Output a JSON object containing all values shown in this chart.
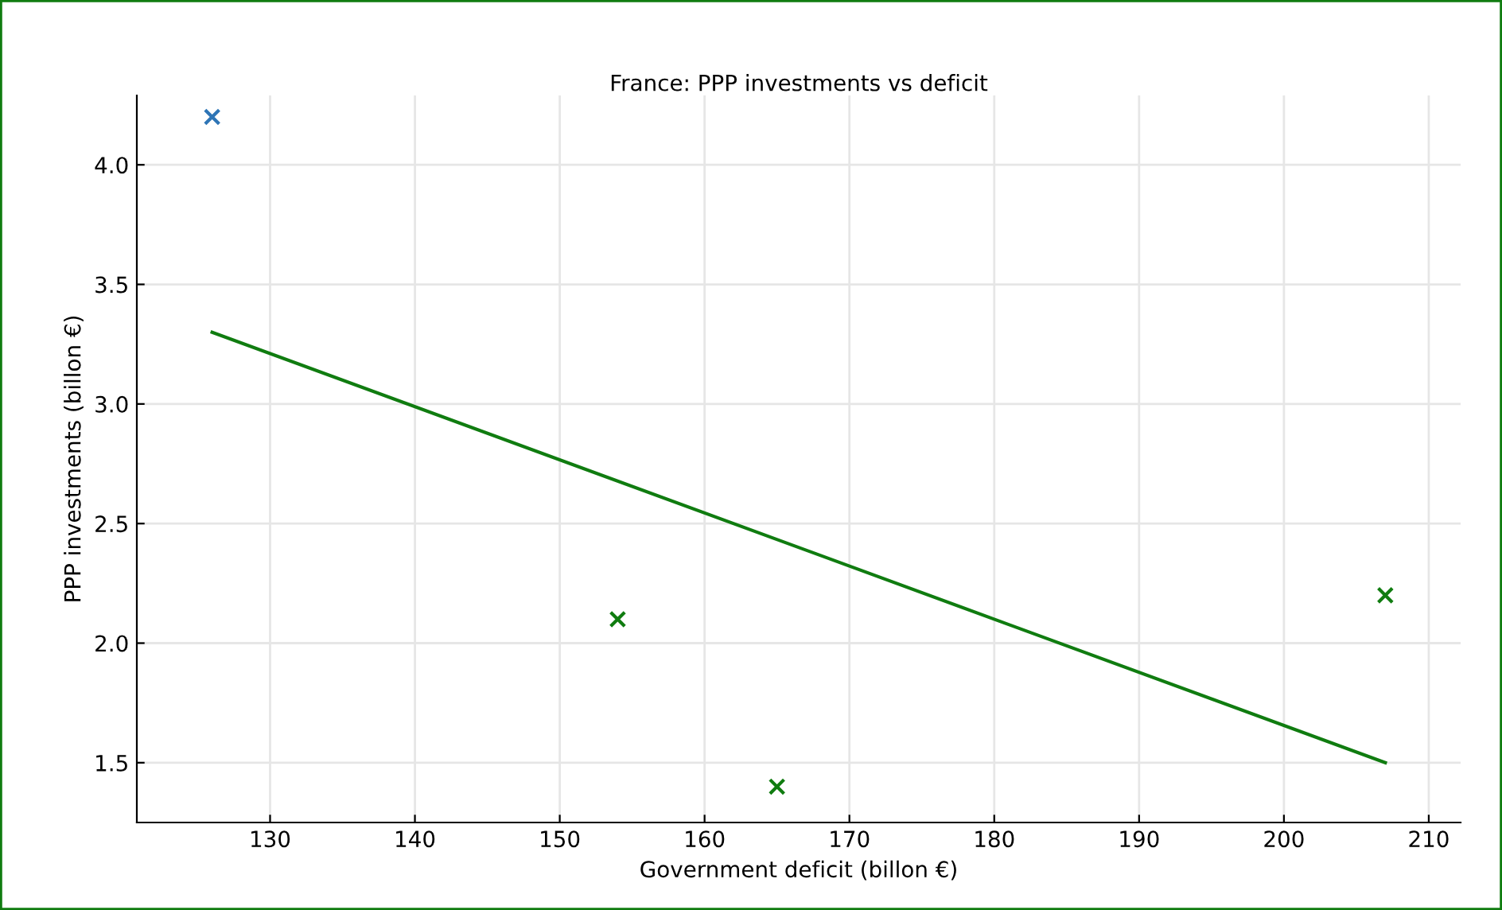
{
  "chart_data": {
    "type": "scatter",
    "title": "France: PPP investments vs deficit",
    "xlabel": "Government deficit (billon €)",
    "ylabel": "PPP investments (billon €)",
    "series": [
      {
        "color": "#2e75b6",
        "marker": "cross",
        "x": [
          126
        ],
        "values": [
          4.2
        ]
      },
      {
        "color": "#107c10",
        "marker": "cross",
        "x": [
          154,
          165,
          207
        ],
        "values": [
          2.1,
          1.4,
          2.2
        ]
      },
      {
        "type": "line",
        "color": "#107c10",
        "x": [
          126,
          207
        ],
        "values": [
          3.3,
          1.5
        ]
      }
    ],
    "grid": true,
    "xlim": [
      120.8,
      212.2
    ],
    "ylim": [
      1.25,
      4.29
    ],
    "xticks": [
      130,
      140,
      150,
      160,
      170,
      180,
      190,
      200,
      210
    ],
    "yticks": [
      {
        "value": 1.5,
        "label": "1.5"
      },
      {
        "value": 2.0,
        "label": "2.0"
      },
      {
        "value": 2.5,
        "label": "2.5"
      },
      {
        "value": 3.0,
        "label": "3.0"
      },
      {
        "value": 3.5,
        "label": "3.5"
      },
      {
        "value": 4.0,
        "label": "4.0"
      }
    ]
  }
}
